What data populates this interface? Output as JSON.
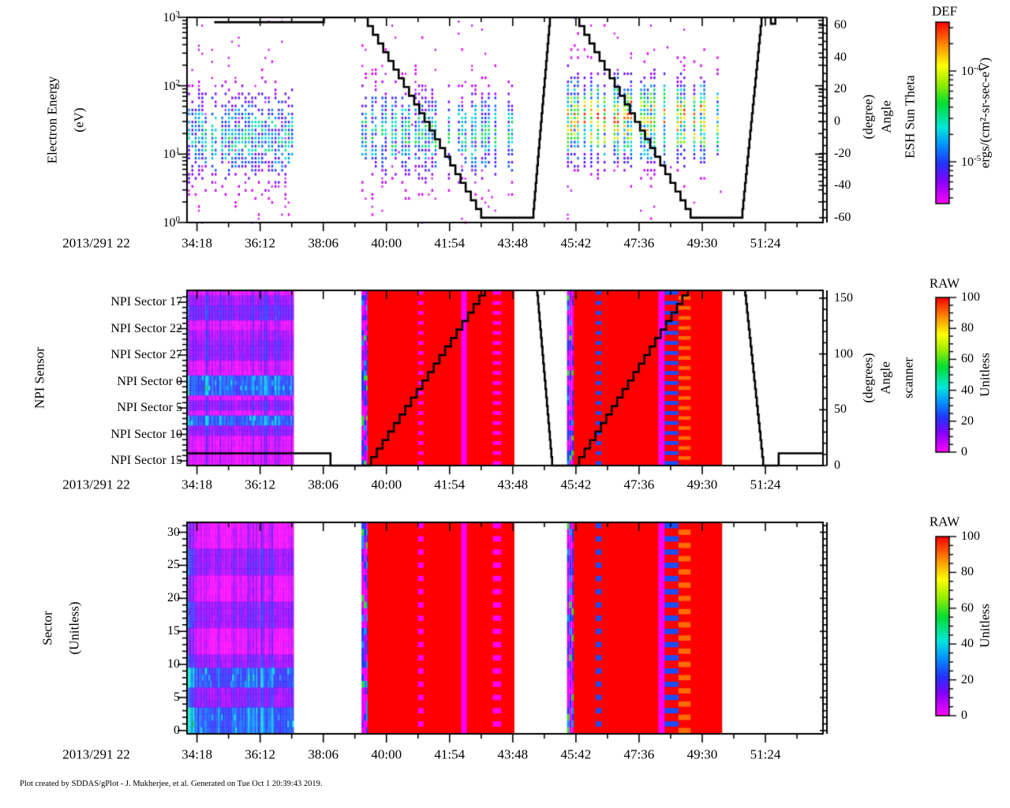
{
  "page": {
    "background": "#ffffff",
    "credit": "Plot created by SDDAS/gPlot - J. Mukherjee, et al.  Generated on Tue Oct 1 20:39:43 2019."
  },
  "time_axis": {
    "prefix_label": "2013/291 22",
    "tick_labels": [
      "34:18",
      "36:12",
      "38:06",
      "40:00",
      "41:54",
      "43:48",
      "45:42",
      "47:36",
      "49:30",
      "51:24"
    ],
    "tick_seconds": [
      2058,
      2172,
      2286,
      2400,
      2514,
      2628,
      2742,
      2856,
      2970,
      3084
    ],
    "minor_step_seconds": 57,
    "xlim_seconds": [
      2040,
      3188
    ]
  },
  "colormap": [
    [
      0,
      "#ff00ff"
    ],
    [
      12,
      "#8800ff"
    ],
    [
      22,
      "#2233ff"
    ],
    [
      33,
      "#0099ff"
    ],
    [
      42,
      "#00e8d8"
    ],
    [
      55,
      "#00dd33"
    ],
    [
      66,
      "#99ee00"
    ],
    [
      76,
      "#ffff00"
    ],
    [
      86,
      "#ff9900"
    ],
    [
      100,
      "#ff0000"
    ]
  ],
  "chart_data": [
    {
      "type": "heatmap",
      "name": "electron-energy-spectrogram",
      "ylabel_lines": [
        "Electron Energy",
        "(eV)"
      ],
      "yscale": "log",
      "ylim": [
        1,
        1000
      ],
      "ytick_labels": [
        "10^0",
        "10^1",
        "10^2",
        "10^3"
      ],
      "right_axis": {
        "title_lines": [
          "ESH Sun Theta",
          "Angle",
          "(degree)"
        ],
        "ticks": [
          60,
          40,
          20,
          0,
          -20,
          -40,
          -60
        ],
        "lim": [
          -63,
          65
        ]
      },
      "colorbar": {
        "title": "DEF",
        "unit": "ergs/(cm²-sr-sec-eV)",
        "scale": "log",
        "tick_labels": [
          "10^-4",
          "10^-5"
        ]
      },
      "line_series": {
        "name": "ESH Sun Theta Angle (degree)",
        "points": [
          [
            2089,
            62
          ],
          [
            2283,
            62
          ],
          [
            2287,
            65
          ],
          [
            2357,
            65
          ],
          [
            2571,
            -60
          ],
          [
            2664,
            -60
          ],
          [
            2695,
            65
          ],
          [
            2739,
            65
          ],
          [
            2949,
            -60
          ],
          [
            3041,
            -60
          ],
          [
            3077,
            65
          ],
          [
            3090,
            65
          ],
          [
            3094,
            61
          ],
          [
            3102,
            65
          ],
          [
            3188,
            65
          ]
        ]
      },
      "bursts": [
        {
          "t0": 2042,
          "t1": 2232,
          "e_peak": 18,
          "e_sigma_log": 0.42,
          "peak_value": 50,
          "column_density": 0.78,
          "outliers": 0.5
        },
        {
          "t0": 2355,
          "t1": 2630,
          "e_peak": 20,
          "e_sigma_log": 0.4,
          "peak_value": 55,
          "column_density": 0.62,
          "outliers": 0.5
        },
        {
          "t0": 2726,
          "t1": 3004,
          "e_peak": 32,
          "e_sigma_log": 0.38,
          "peak_value": 90,
          "column_density": 0.7,
          "outliers": 0.4
        }
      ]
    },
    {
      "type": "heatmap",
      "name": "npi-sensor",
      "ylabel_lines": [
        "NPI Sensor"
      ],
      "ytick_labels": [
        "NPI Sector 17",
        "NPI Sector 22",
        "NPI Sector 27",
        "NPI Sector 0",
        "NPI Sector 5",
        "NPI Sector 10",
        "NPI Sector 15"
      ],
      "rows": 35,
      "right_axis": {
        "title_lines": [
          "scanner",
          "Angle",
          "(degrees)"
        ],
        "ticks": [
          0,
          50,
          100,
          150
        ],
        "lim": [
          0,
          157
        ]
      },
      "colorbar": {
        "title": "RAW",
        "unit": "Unitless",
        "ticks": [
          0,
          20,
          40,
          60,
          80,
          100
        ],
        "lim": [
          0,
          100
        ]
      },
      "line_series": {
        "name": "scanner Angle (degrees)",
        "points": [
          [
            2039,
            11
          ],
          [
            2296,
            11
          ],
          [
            2299,
            0
          ],
          [
            2362,
            0
          ],
          [
            2578,
            160
          ],
          [
            2671,
            160
          ],
          [
            2699,
            0
          ],
          [
            2738,
            0
          ],
          [
            2944,
            160
          ],
          [
            3046,
            160
          ],
          [
            3080,
            0
          ],
          [
            3105,
            0
          ],
          [
            3108,
            11
          ],
          [
            3188,
            11
          ]
        ]
      },
      "bands": [
        {
          "from": 0.03,
          "to": 0.1,
          "value": 10
        },
        {
          "from": 0.1,
          "to": 0.17,
          "value": 14
        },
        {
          "from": 0.22,
          "to": 0.28,
          "value": 8
        },
        {
          "from": 0.3,
          "to": 0.4,
          "value": 11
        },
        {
          "from": 0.5,
          "to": 0.545,
          "value": 24
        },
        {
          "from": 0.555,
          "to": 0.6,
          "value": 24
        },
        {
          "from": 0.62,
          "to": 0.7,
          "value": 11
        },
        {
          "from": 0.715,
          "to": 0.76,
          "value": 24
        },
        {
          "from": 0.77,
          "to": 0.83,
          "value": 11
        }
      ],
      "regions": [
        {
          "t0": 2042,
          "t1": 2232,
          "kind": "noise"
        },
        {
          "t0": 2355,
          "t1": 2366,
          "kind": "mixed"
        },
        {
          "t0": 2366,
          "t1": 2631,
          "kind": "solid",
          "value": 100,
          "stripes": [
            {
              "t0": 2457,
              "t1": 2467,
              "style": "dashed",
              "value": 0
            },
            {
              "t0": 2535,
              "t1": 2545,
              "style": "solid",
              "value": 0
            },
            {
              "t0": 2592,
              "t1": 2607,
              "style": "dashed",
              "value": 0
            }
          ]
        },
        {
          "t0": 2726,
          "t1": 2738,
          "kind": "mixed"
        },
        {
          "t0": 2738,
          "t1": 3006,
          "kind": "solid",
          "value": 100,
          "stripes": [
            {
              "t0": 2778,
              "t1": 2788,
              "style": "dashed",
              "value": 25
            },
            {
              "t0": 2891,
              "t1": 2902,
              "style": "solid",
              "value": 0
            },
            {
              "t0": 2902,
              "t1": 2927,
              "style": "dashed",
              "value": 25
            },
            {
              "t0": 2927,
              "t1": 2949,
              "style": "dashed",
              "value": 90,
              "phase": 1
            }
          ]
        }
      ]
    },
    {
      "type": "heatmap",
      "name": "sector",
      "ylabel_lines": [
        "Sector",
        "(Unitless)"
      ],
      "ylim": [
        -0.5,
        31.5
      ],
      "yticks": [
        0,
        5,
        10,
        15,
        20,
        25,
        30
      ],
      "rows": 32,
      "colorbar": {
        "title": "RAW",
        "unit": "Unitless",
        "ticks": [
          0,
          20,
          40,
          60,
          80,
          100
        ],
        "lim": [
          0,
          100
        ]
      },
      "bands": [
        {
          "from": 0.125,
          "to": 0.25,
          "value": 11
        },
        {
          "from": 0.375,
          "to": 0.5,
          "value": 11
        },
        {
          "from": 0.625,
          "to": 0.6875,
          "value": 11
        },
        {
          "from": 0.6875,
          "to": 0.78,
          "value": 23
        },
        {
          "from": 0.78,
          "to": 0.875,
          "value": 12
        },
        {
          "from": 0.875,
          "to": 1.0,
          "value": 25
        }
      ],
      "regions": [
        {
          "t0": 2042,
          "t1": 2232,
          "kind": "noise"
        },
        {
          "t0": 2355,
          "t1": 2366,
          "kind": "mixed"
        },
        {
          "t0": 2366,
          "t1": 2631,
          "kind": "solid",
          "value": 100,
          "stripes": [
            {
              "t0": 2457,
              "t1": 2467,
              "style": "dashed",
              "value": 0
            },
            {
              "t0": 2535,
              "t1": 2545,
              "style": "solid",
              "value": 0
            },
            {
              "t0": 2592,
              "t1": 2607,
              "style": "dashed",
              "value": 0
            }
          ]
        },
        {
          "t0": 2726,
          "t1": 2738,
          "kind": "mixed"
        },
        {
          "t0": 2738,
          "t1": 3006,
          "kind": "solid",
          "value": 100,
          "stripes": [
            {
              "t0": 2778,
              "t1": 2788,
              "style": "dashed",
              "value": 25
            },
            {
              "t0": 2891,
              "t1": 2902,
              "style": "solid",
              "value": 0
            },
            {
              "t0": 2902,
              "t1": 2927,
              "style": "dashed",
              "value": 25
            },
            {
              "t0": 2927,
              "t1": 2949,
              "style": "dashed",
              "value": 90,
              "phase": 1
            }
          ]
        }
      ]
    }
  ]
}
